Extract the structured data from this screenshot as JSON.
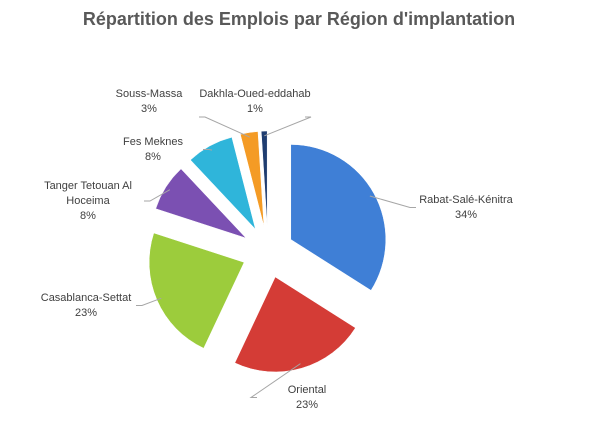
{
  "chart_data": {
    "type": "pie",
    "title": "Répartition des Emplois par Région d'implantation",
    "categories": [
      "Rabat-Salé-Kénitra",
      "Oriental",
      "Casablanca-Settat",
      "Tanger Tetouan Al Hoceima",
      "Fes Meknes",
      "Souss-Massa",
      "Dakhla-Oued-eddahab"
    ],
    "values": [
      34,
      23,
      23,
      8,
      8,
      3,
      1
    ],
    "value_labels": [
      "34%",
      "23%",
      "23%",
      "8%",
      "8%",
      "3%",
      "1%"
    ],
    "colors": [
      "#3f7fd6",
      "#d43c36",
      "#9ccc3c",
      "#7b50b2",
      "#2fb5da",
      "#f49b25",
      "#1f3d70"
    ]
  }
}
